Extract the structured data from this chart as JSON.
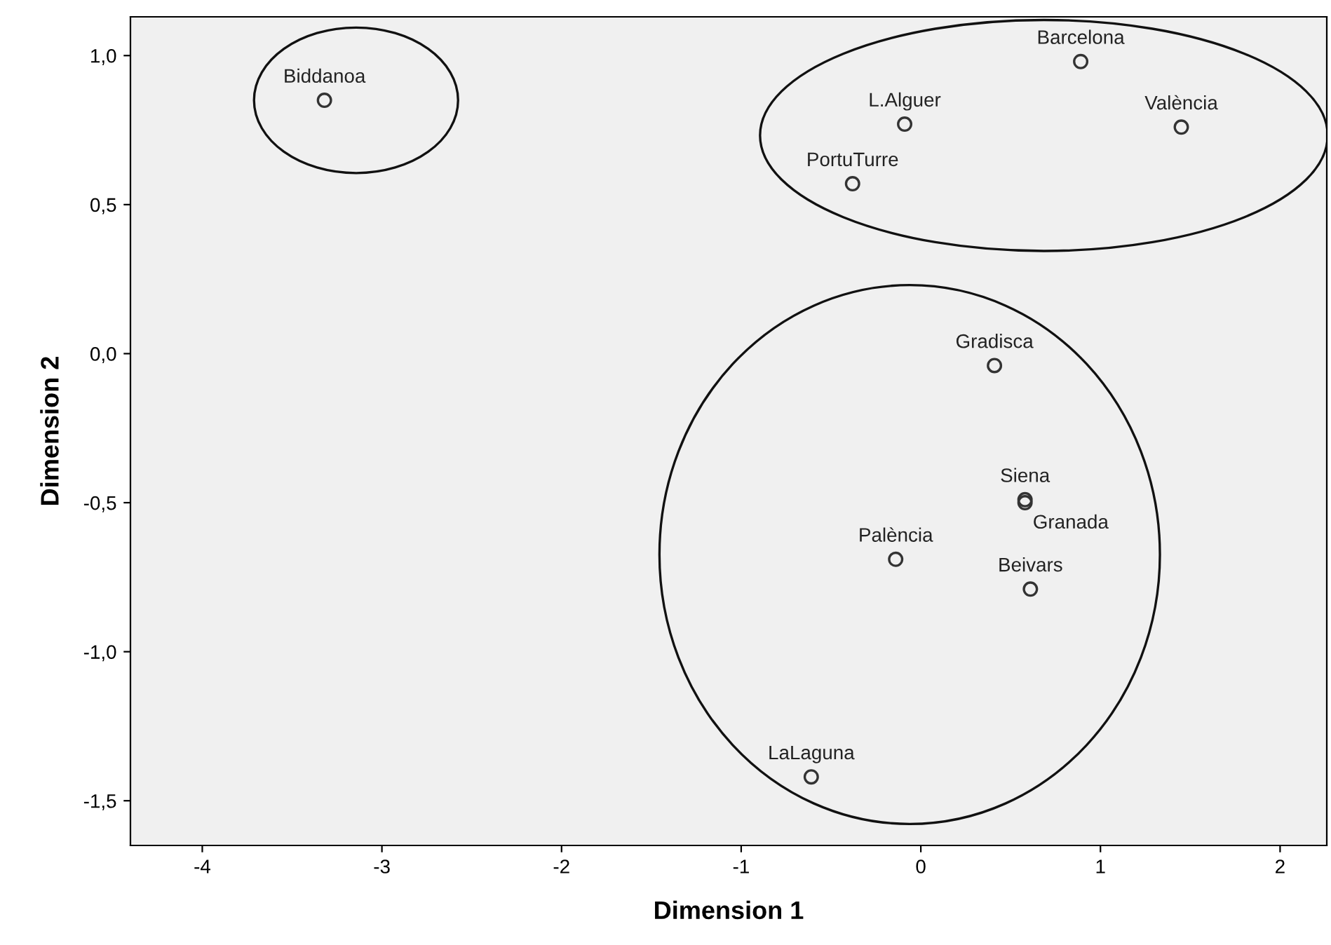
{
  "chart_data": {
    "type": "scatter",
    "xlabel": "Dimension 1",
    "ylabel": "Dimension 2",
    "x": [
      -3.32,
      0.89,
      -0.09,
      1.45,
      -0.38,
      0.41,
      0.58,
      0.58,
      -0.14,
      0.61,
      -0.61
    ],
    "series": [
      {
        "color": "#333333",
        "values": [
          0.85,
          0.98,
          0.77,
          0.76,
          0.57,
          -0.04,
          -0.49,
          -0.5,
          -0.69,
          -0.79,
          -1.42
        ]
      }
    ],
    "annotations": [
      {
        "text": "Biddanoa",
        "x": -3.32,
        "y": 0.85
      },
      {
        "text": "Barcelona",
        "x": 0.89,
        "y": 0.98
      },
      {
        "text": "L.Alguer",
        "x": -0.09,
        "y": 0.77
      },
      {
        "text": "València",
        "x": 1.45,
        "y": 0.76
      },
      {
        "text": "PortuTurre",
        "x": -0.38,
        "y": 0.57
      },
      {
        "text": "Gradisca",
        "x": 0.41,
        "y": -0.04
      },
      {
        "text": "Siena",
        "x": 0.58,
        "y": -0.49
      },
      {
        "text": "Granada",
        "x": 0.58,
        "y": -0.5
      },
      {
        "text": "Palència",
        "x": -0.14,
        "y": -0.69
      },
      {
        "text": "Beivars",
        "x": 0.61,
        "y": -0.79
      },
      {
        "text": "LaLaguna",
        "x": -0.61,
        "y": -1.42
      }
    ],
    "xlim": [
      -4.4,
      2.26
    ],
    "ylim": [
      -1.65,
      1.13
    ],
    "xticks": [
      -4,
      -3,
      -2,
      -1,
      0,
      1,
      2
    ],
    "yticks": [
      {
        "value": -1.5,
        "label": "-1,5"
      },
      {
        "value": -1.0,
        "label": "-1,0"
      },
      {
        "value": -0.5,
        "label": "-0,5"
      },
      {
        "value": 0.0,
        "label": "0,0"
      },
      {
        "value": 0.5,
        "label": "0,5"
      },
      {
        "value": 1.0,
        "label": "1,0"
      }
    ],
    "marker": "circle",
    "grid": false
  }
}
